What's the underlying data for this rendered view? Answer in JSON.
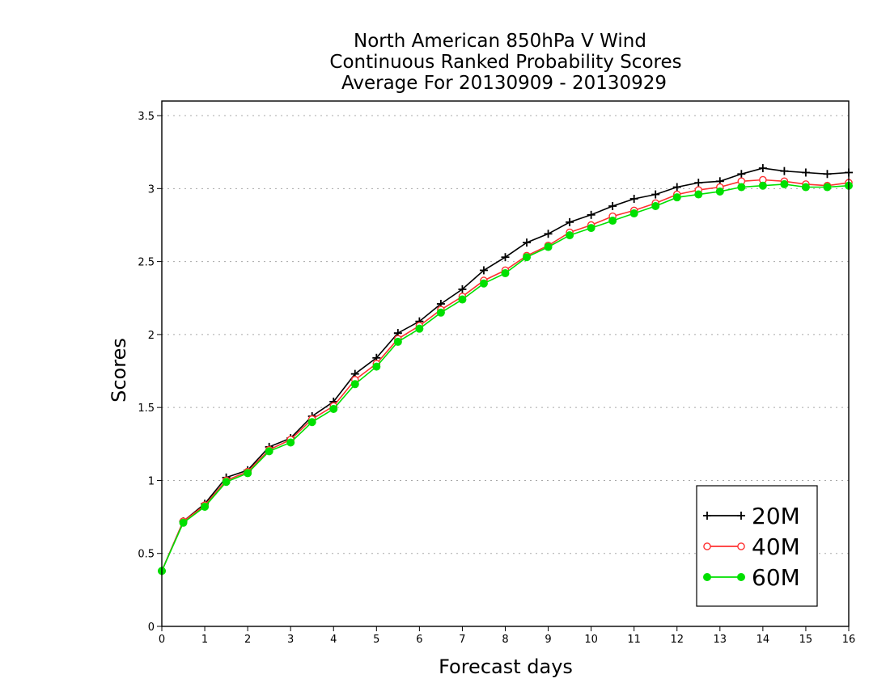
{
  "chart_data": {
    "type": "line",
    "title": [
      "North American 850hPa V Wind",
      "Continuous Ranked Probability Scores",
      "Average For 20130909 - 20130929"
    ],
    "xlabel": "Forecast days",
    "ylabel": "Scores",
    "xlim": [
      0,
      16
    ],
    "ylim": [
      0,
      3.6
    ],
    "xticks": [
      0,
      1,
      2,
      3,
      4,
      5,
      6,
      7,
      8,
      9,
      10,
      11,
      12,
      13,
      14,
      15,
      16
    ],
    "xtick_labels": [
      "0",
      "1",
      "2",
      "3",
      "4",
      "5",
      "6",
      "7",
      "8",
      "9",
      "10",
      "11",
      "12",
      "13",
      "14",
      "15",
      "16"
    ],
    "yticks": [
      0,
      0.5,
      1,
      1.5,
      2,
      2.5,
      3,
      3.5
    ],
    "ytick_labels": [
      "0",
      "0.5",
      "1",
      "1.5",
      "2",
      "2.5",
      "3",
      "3.5"
    ],
    "grid": "horizontal dotted",
    "legend_position": "bottom-right",
    "x": [
      0,
      0.5,
      1,
      1.5,
      2,
      2.5,
      3,
      3.5,
      4,
      4.5,
      5,
      5.5,
      6,
      6.5,
      7,
      7.5,
      8,
      8.5,
      9,
      9.5,
      10,
      10.5,
      11,
      11.5,
      12,
      12.5,
      13,
      13.5,
      14,
      14.5,
      15,
      15.5,
      16
    ],
    "series": [
      {
        "name": "20M",
        "color": "#000000",
        "marker": "plus",
        "values": [
          0.38,
          0.72,
          0.84,
          1.02,
          1.07,
          1.23,
          1.29,
          1.44,
          1.54,
          1.73,
          1.84,
          2.01,
          2.09,
          2.21,
          2.31,
          2.44,
          2.53,
          2.63,
          2.69,
          2.77,
          2.82,
          2.88,
          2.93,
          2.96,
          3.01,
          3.04,
          3.05,
          3.1,
          3.14,
          3.12,
          3.11,
          3.1,
          3.11
        ]
      },
      {
        "name": "40M",
        "color": "#ff3030",
        "marker": "open-circle",
        "values": [
          0.38,
          0.72,
          0.83,
          1.0,
          1.06,
          1.21,
          1.28,
          1.42,
          1.51,
          1.69,
          1.8,
          1.97,
          2.06,
          2.17,
          2.26,
          2.37,
          2.44,
          2.54,
          2.61,
          2.7,
          2.75,
          2.81,
          2.85,
          2.9,
          2.96,
          2.99,
          3.01,
          3.05,
          3.06,
          3.05,
          3.03,
          3.02,
          3.04
        ]
      },
      {
        "name": "60M",
        "color": "#00e000",
        "marker": "filled-circle",
        "values": [
          0.38,
          0.71,
          0.82,
          0.99,
          1.05,
          1.2,
          1.26,
          1.4,
          1.49,
          1.66,
          1.78,
          1.95,
          2.04,
          2.15,
          2.24,
          2.35,
          2.42,
          2.53,
          2.6,
          2.68,
          2.73,
          2.78,
          2.83,
          2.88,
          2.94,
          2.96,
          2.98,
          3.01,
          3.02,
          3.03,
          3.01,
          3.01,
          3.02
        ]
      }
    ]
  }
}
